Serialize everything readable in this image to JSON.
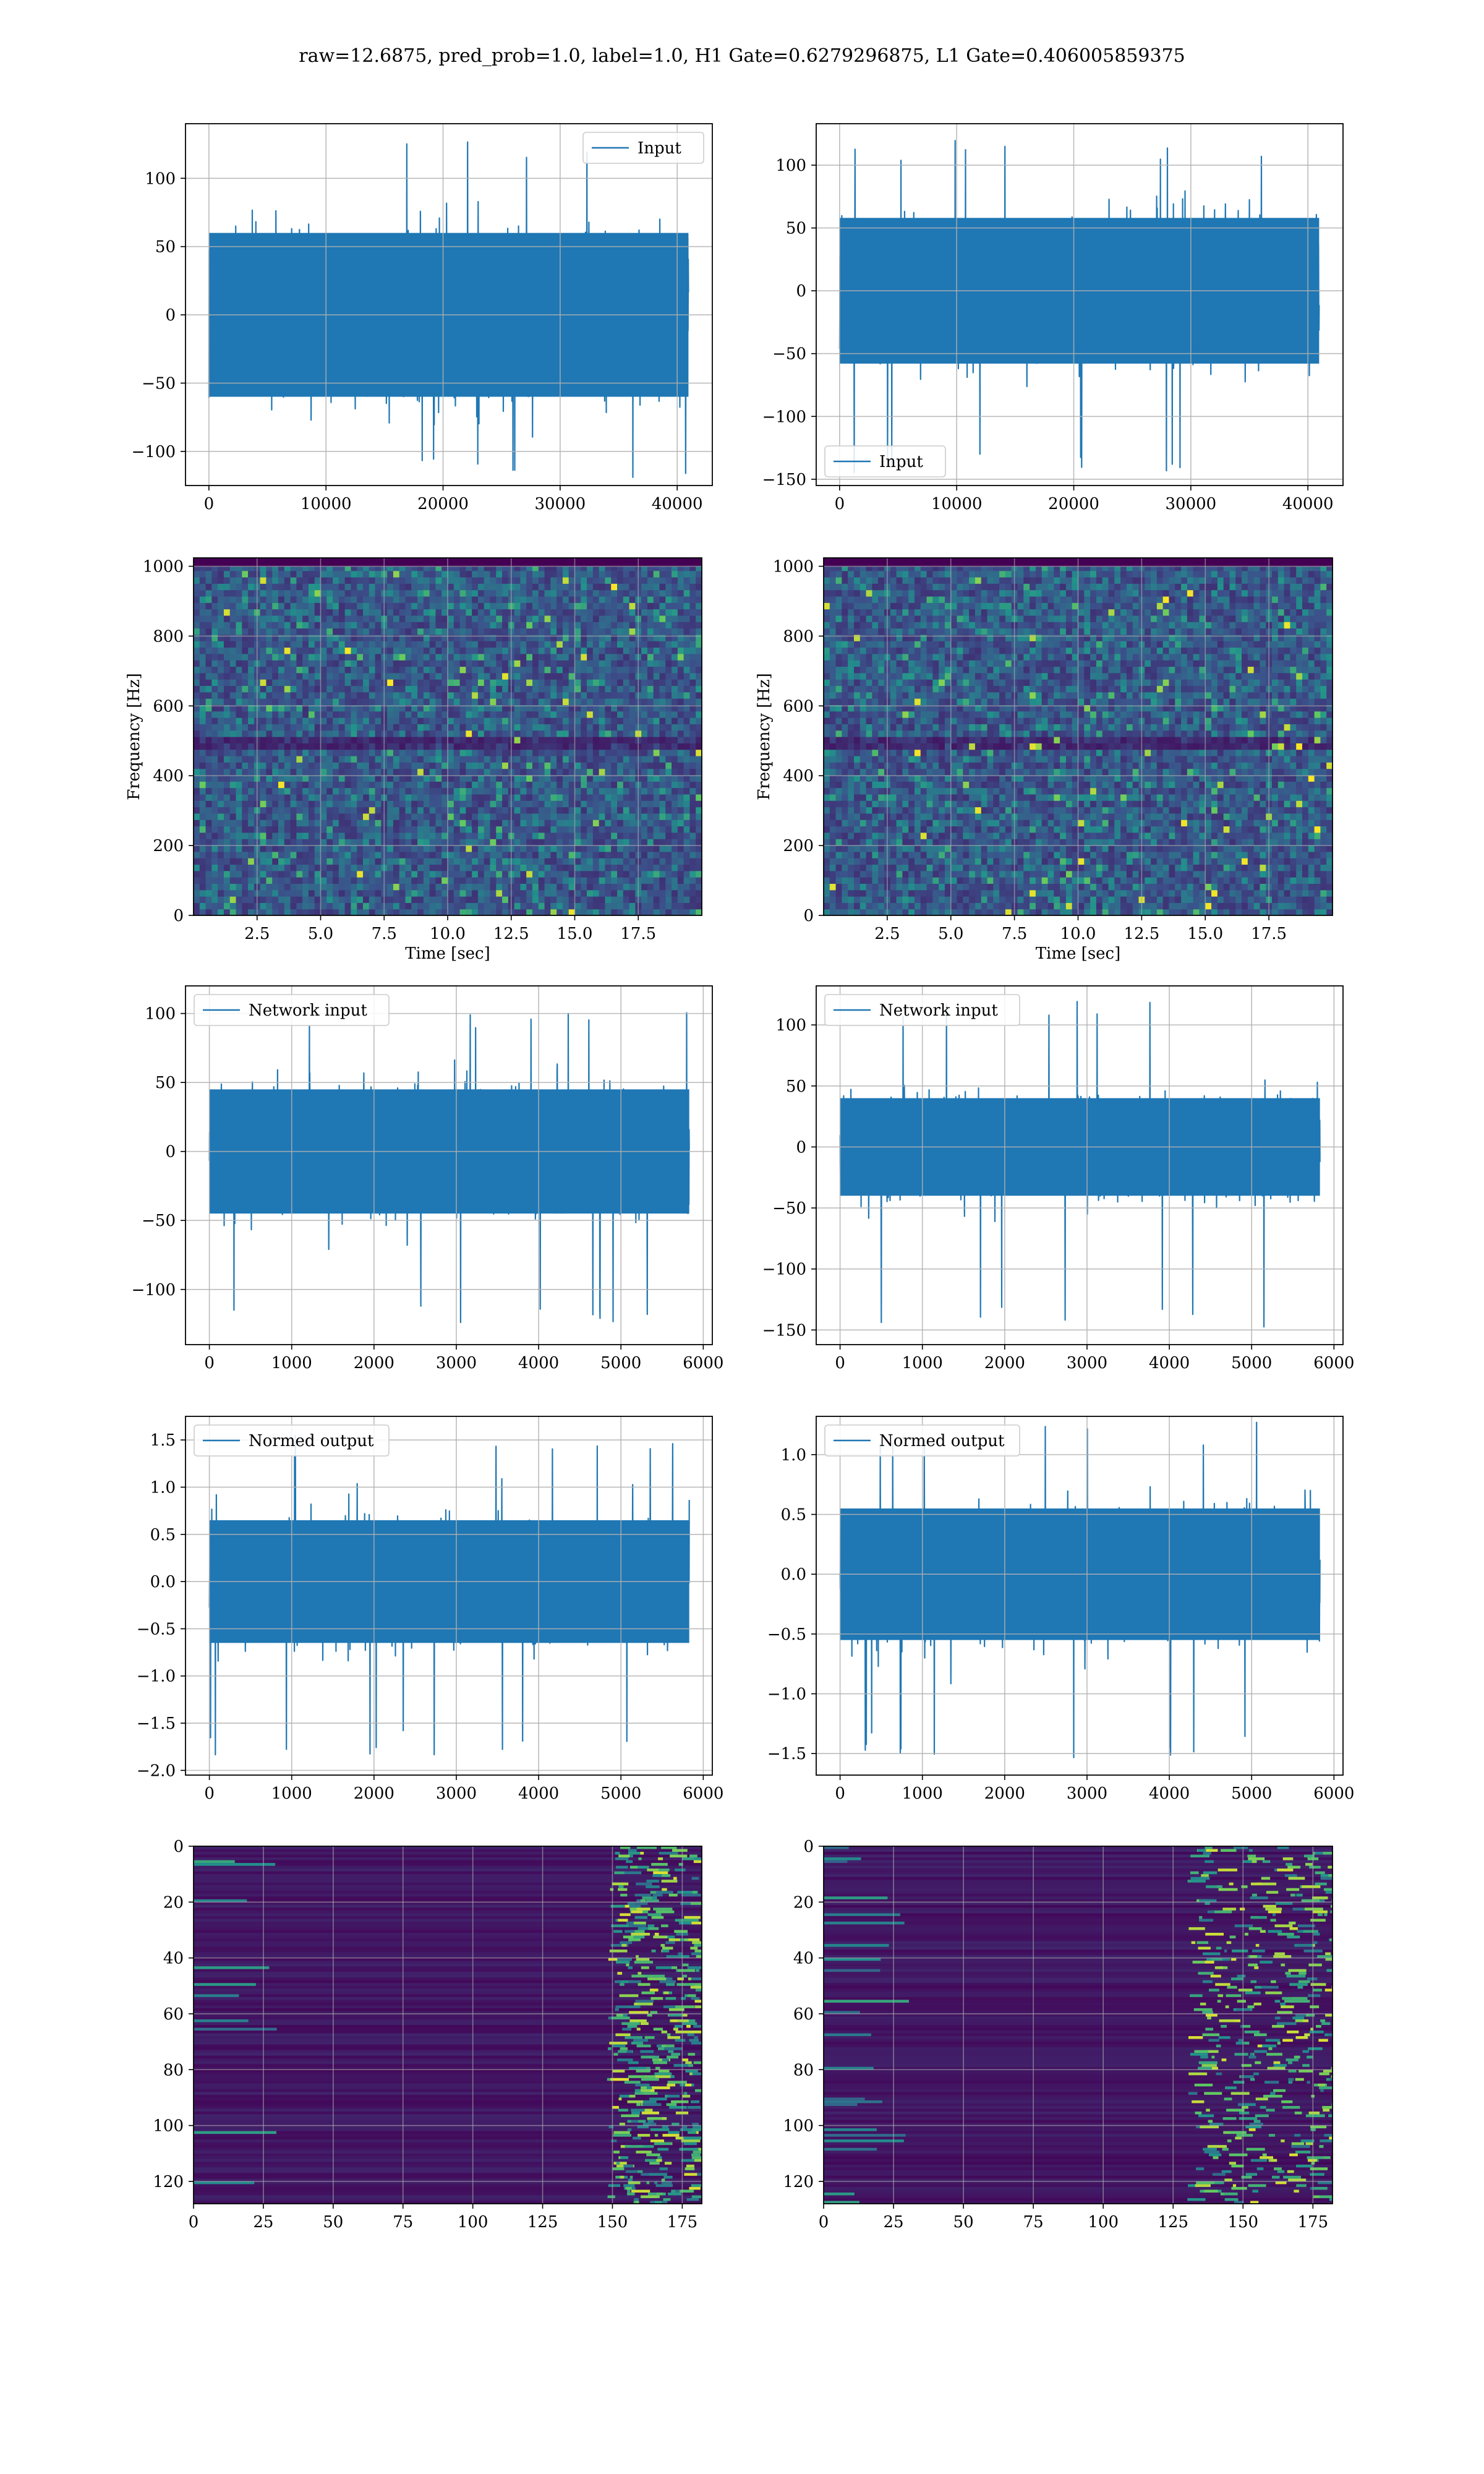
{
  "figure": {
    "suptitle": "raw=12.6875, pred_prob=1.0, label=1.0, H1 Gate=0.6279296875, L1 Gate=0.406005859375"
  },
  "colors": {
    "series": "#1f77b4",
    "axes": "#000000",
    "grid": "#b0b0b0",
    "viridis_low": "#440154",
    "viridis_mid": "#21918c",
    "viridis_high": "#fde725"
  },
  "chart_data": [
    {
      "id": "h1-input",
      "type": "line",
      "row": 0,
      "col": 0,
      "title": "",
      "xlabel": "",
      "ylabel": "",
      "xlim": [
        -2000,
        43000
      ],
      "ylim": [
        -125,
        140
      ],
      "xticks": [
        0,
        10000,
        20000,
        30000,
        40000
      ],
      "xtick_labels": [
        "0",
        "10000",
        "20000",
        "30000",
        "40000"
      ],
      "yticks": [
        -100,
        -50,
        0,
        50,
        100
      ],
      "ytick_labels": [
        "−100",
        "−50",
        "0",
        "50",
        "100"
      ],
      "grid": true,
      "legend": "upper right",
      "series": [
        {
          "name": "Input",
          "x_range": [
            0,
            40960
          ],
          "amplitude": 60,
          "peak_max": 130,
          "peak_min": -122
        }
      ]
    },
    {
      "id": "l1-input",
      "type": "line",
      "row": 0,
      "col": 1,
      "title": "",
      "xlabel": "",
      "ylabel": "",
      "xlim": [
        -2000,
        43000
      ],
      "ylim": [
        -155,
        133
      ],
      "xticks": [
        0,
        10000,
        20000,
        30000,
        40000
      ],
      "xtick_labels": [
        "0",
        "10000",
        "20000",
        "30000",
        "40000"
      ],
      "yticks": [
        -150,
        -100,
        -50,
        0,
        50,
        100
      ],
      "ytick_labels": [
        "−150",
        "−100",
        "−50",
        "0",
        "50",
        "100"
      ],
      "grid": true,
      "legend": "lower left",
      "series": [
        {
          "name": "Input",
          "x_range": [
            0,
            40960
          ],
          "amplitude": 58,
          "peak_max": 120,
          "peak_min": -145
        }
      ]
    },
    {
      "id": "h1-spectrogram",
      "type": "heatmap",
      "row": 1,
      "col": 0,
      "title": "",
      "xlabel": "Time [sec]",
      "ylabel": "Frequency [Hz]",
      "xlim": [
        0,
        20
      ],
      "ylim": [
        0,
        1024
      ],
      "xticks": [
        2.5,
        5.0,
        7.5,
        10.0,
        12.5,
        15.0,
        17.5
      ],
      "xtick_labels": [
        "2.5",
        "5.0",
        "7.5",
        "10.0",
        "12.5",
        "15.0",
        "17.5"
      ],
      "yticks": [
        0,
        200,
        400,
        600,
        800,
        1000
      ],
      "ytick_labels": [
        "0",
        "200",
        "400",
        "600",
        "800",
        "1000"
      ],
      "grid": true,
      "colormap": "viridis",
      "dark_band_hz": [
        480,
        520
      ]
    },
    {
      "id": "l1-spectrogram",
      "type": "heatmap",
      "row": 1,
      "col": 1,
      "title": "",
      "xlabel": "Time [sec]",
      "ylabel": "Frequency [Hz]",
      "xlim": [
        0,
        20
      ],
      "ylim": [
        0,
        1024
      ],
      "xticks": [
        2.5,
        5.0,
        7.5,
        10.0,
        12.5,
        15.0,
        17.5
      ],
      "xtick_labels": [
        "2.5",
        "5.0",
        "7.5",
        "10.0",
        "12.5",
        "15.0",
        "17.5"
      ],
      "yticks": [
        0,
        200,
        400,
        600,
        800,
        1000
      ],
      "ytick_labels": [
        "0",
        "200",
        "400",
        "600",
        "800",
        "1000"
      ],
      "grid": true,
      "colormap": "viridis",
      "dark_band_hz": [
        480,
        520
      ]
    },
    {
      "id": "h1-network-input",
      "type": "line",
      "row": 2,
      "col": 0,
      "title": "",
      "xlabel": "",
      "ylabel": "",
      "xlim": [
        -290,
        6110
      ],
      "ylim": [
        -140,
        120
      ],
      "xticks": [
        0,
        1000,
        2000,
        3000,
        4000,
        5000,
        6000
      ],
      "xtick_labels": [
        "0",
        "1000",
        "2000",
        "3000",
        "4000",
        "5000",
        "6000"
      ],
      "yticks": [
        -100,
        -50,
        0,
        50,
        100
      ],
      "ytick_labels": [
        "−100",
        "−50",
        "0",
        "50",
        "100"
      ],
      "grid": true,
      "legend": "upper left",
      "series": [
        {
          "name": "Network input",
          "x_range": [
            0,
            5830
          ],
          "amplitude": 45,
          "peak_max": 105,
          "peak_min": -125
        }
      ]
    },
    {
      "id": "l1-network-input",
      "type": "line",
      "row": 2,
      "col": 1,
      "title": "",
      "xlabel": "",
      "ylabel": "",
      "xlim": [
        -290,
        6110
      ],
      "ylim": [
        -162,
        132
      ],
      "xticks": [
        0,
        1000,
        2000,
        3000,
        4000,
        5000,
        6000
      ],
      "xtick_labels": [
        "0",
        "1000",
        "2000",
        "3000",
        "4000",
        "5000",
        "6000"
      ],
      "yticks": [
        -150,
        -100,
        -50,
        0,
        50,
        100
      ],
      "ytick_labels": [
        "−150",
        "−100",
        "−50",
        "0",
        "50",
        "100"
      ],
      "grid": true,
      "legend": "upper left",
      "series": [
        {
          "name": "Network input",
          "x_range": [
            0,
            5830
          ],
          "amplitude": 40,
          "peak_max": 120,
          "peak_min": -148
        }
      ]
    },
    {
      "id": "h1-normed-output",
      "type": "line",
      "row": 3,
      "col": 0,
      "title": "",
      "xlabel": "",
      "ylabel": "",
      "xlim": [
        -290,
        6110
      ],
      "ylim": [
        -2.05,
        1.75
      ],
      "xticks": [
        0,
        1000,
        2000,
        3000,
        4000,
        5000,
        6000
      ],
      "xtick_labels": [
        "0",
        "1000",
        "2000",
        "3000",
        "4000",
        "5000",
        "6000"
      ],
      "yticks": [
        -2.0,
        -1.5,
        -1.0,
        -0.5,
        0.0,
        0.5,
        1.0,
        1.5
      ],
      "ytick_labels": [
        "−2.0",
        "−1.5",
        "−1.0",
        "−0.5",
        "0.0",
        "0.5",
        "1.0",
        "1.5"
      ],
      "grid": true,
      "legend": "upper left",
      "series": [
        {
          "name": "Normed output",
          "x_range": [
            0,
            5830
          ],
          "amplitude": 0.65,
          "peak_max": 1.57,
          "peak_min": -1.85
        }
      ]
    },
    {
      "id": "l1-normed-output",
      "type": "line",
      "row": 3,
      "col": 1,
      "title": "",
      "xlabel": "",
      "ylabel": "",
      "xlim": [
        -290,
        6110
      ],
      "ylim": [
        -1.68,
        1.32
      ],
      "xticks": [
        0,
        1000,
        2000,
        3000,
        4000,
        5000,
        6000
      ],
      "xtick_labels": [
        "0",
        "1000",
        "2000",
        "3000",
        "4000",
        "5000",
        "6000"
      ],
      "yticks": [
        -1.5,
        -1.0,
        -0.5,
        0.0,
        0.5,
        1.0
      ],
      "ytick_labels": [
        "−1.5",
        "−1.0",
        "−0.5",
        "0.0",
        "0.5",
        "1.0"
      ],
      "grid": true,
      "legend": "upper left",
      "series": [
        {
          "name": "Normed output",
          "x_range": [
            0,
            5830
          ],
          "amplitude": 0.55,
          "peak_max": 1.27,
          "peak_min": -1.55
        }
      ]
    },
    {
      "id": "h1-feature-map",
      "type": "heatmap",
      "row": 4,
      "col": 0,
      "title": "",
      "xlabel": "",
      "ylabel": "",
      "xlim": [
        0,
        182
      ],
      "ylim": [
        128,
        0
      ],
      "xticks": [
        0,
        25,
        50,
        75,
        100,
        125,
        150,
        175
      ],
      "xtick_labels": [
        "0",
        "25",
        "50",
        "75",
        "100",
        "125",
        "150",
        "175"
      ],
      "yticks": [
        0,
        20,
        40,
        60,
        80,
        100,
        120
      ],
      "ytick_labels": [
        "0",
        "20",
        "40",
        "60",
        "80",
        "100",
        "120"
      ],
      "grid": true,
      "colormap": "viridis",
      "hot_columns": [
        148,
        180
      ]
    },
    {
      "id": "l1-feature-map",
      "type": "heatmap",
      "row": 4,
      "col": 1,
      "title": "",
      "xlabel": "",
      "ylabel": "",
      "xlim": [
        0,
        182
      ],
      "ylim": [
        128,
        0
      ],
      "xticks": [
        0,
        25,
        50,
        75,
        100,
        125,
        150,
        175
      ],
      "xtick_labels": [
        "0",
        "25",
        "50",
        "75",
        "100",
        "125",
        "150",
        "175"
      ],
      "yticks": [
        0,
        20,
        40,
        60,
        80,
        100,
        120
      ],
      "ytick_labels": [
        "0",
        "20",
        "40",
        "60",
        "80",
        "100",
        "120"
      ],
      "grid": true,
      "colormap": "viridis",
      "hot_columns": [
        130,
        182
      ]
    }
  ]
}
